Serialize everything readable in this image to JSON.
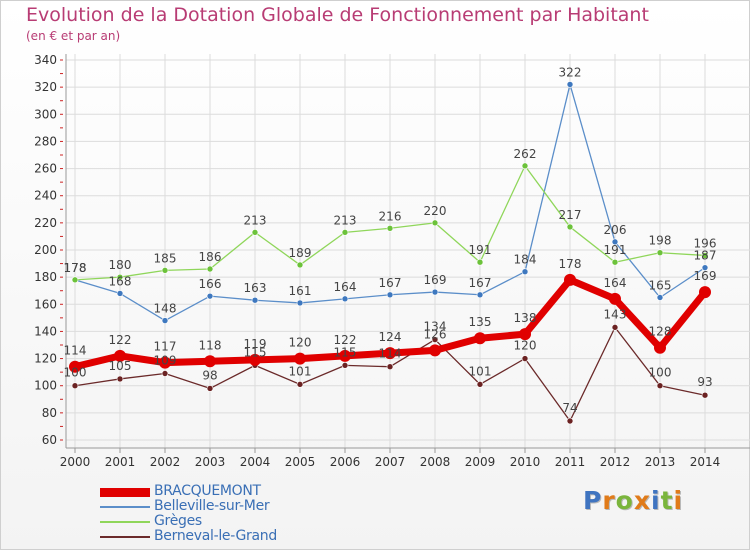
{
  "title": "Evolution de la Dotation Globale de Fonctionnement par Habitant",
  "subtitle": "(en € et par an)",
  "logo": {
    "letters": [
      "P",
      "r",
      "o",
      "x",
      "i",
      "t",
      "i"
    ],
    "colors": [
      "#3f74c0",
      "#e07b1a",
      "#7ab53c",
      "#e07b1a",
      "#3f74c0",
      "#7ab53c",
      "#e07b1a"
    ]
  },
  "chart_data": {
    "type": "line",
    "title": "Evolution de la Dotation Globale de Fonctionnement par Habitant",
    "ylabel": "(en € et par an)",
    "xlabel": "",
    "x": [
      "2000",
      "2001",
      "2002",
      "2003",
      "2004",
      "2005",
      "2006",
      "2007",
      "2008",
      "2009",
      "2010",
      "2011",
      "2012",
      "2013",
      "2014"
    ],
    "ylim": [
      60,
      340
    ],
    "yticks": [
      "60",
      "80",
      "100",
      "120",
      "140",
      "160",
      "180",
      "200",
      "220",
      "240",
      "260",
      "280",
      "300",
      "320",
      "340"
    ],
    "grid": true,
    "legend_position": "bottom-left",
    "series": [
      {
        "name": "BRACQUEMONT",
        "color": "#e00000",
        "width": 7,
        "marker_color": "#e00000",
        "values": [
          114,
          122,
          117,
          118,
          119,
          120,
          122,
          124,
          126,
          135,
          138,
          178,
          164,
          128,
          169
        ],
        "labels": [
          "114",
          "122",
          "117",
          "118",
          "119",
          "120",
          "122",
          "124",
          "126",
          "135",
          "138",
          "178",
          "164",
          "128",
          "169"
        ]
      },
      {
        "name": "Belleville-sur-Mer",
        "color": "#5b8ec9",
        "width": 1.3,
        "marker_color": "#3e78bf",
        "values": [
          178,
          168,
          148,
          166,
          163,
          161,
          164,
          167,
          169,
          167,
          184,
          322,
          206,
          165,
          187
        ],
        "labels": [
          "178",
          "168",
          "148",
          "166",
          "163",
          "161",
          "164",
          "167",
          "169",
          "167",
          "184",
          "322",
          "206",
          "165",
          "187"
        ]
      },
      {
        "name": "Grèges",
        "color": "#8fd65a",
        "width": 1.3,
        "marker_color": "#6cc23a",
        "values": [
          178,
          180,
          185,
          186,
          213,
          189,
          213,
          216,
          220,
          191,
          262,
          217,
          191,
          198,
          196
        ],
        "labels": [
          "178",
          "180",
          "185",
          "186",
          "213",
          "189",
          "213",
          "216",
          "220",
          "191",
          "262",
          "217",
          "191",
          "198",
          "196"
        ]
      },
      {
        "name": "Berneval-le-Grand",
        "color": "#6b2a2a",
        "width": 1.3,
        "marker_color": "#6b2222",
        "values": [
          100,
          105,
          109,
          98,
          115,
          101,
          115,
          114,
          134,
          101,
          120,
          74,
          143,
          100,
          93
        ],
        "labels": [
          "100",
          "105",
          "109",
          "98",
          "115",
          "101",
          "115",
          "114",
          "134",
          "101",
          "120",
          "74",
          "143",
          "100",
          "93"
        ]
      }
    ]
  }
}
